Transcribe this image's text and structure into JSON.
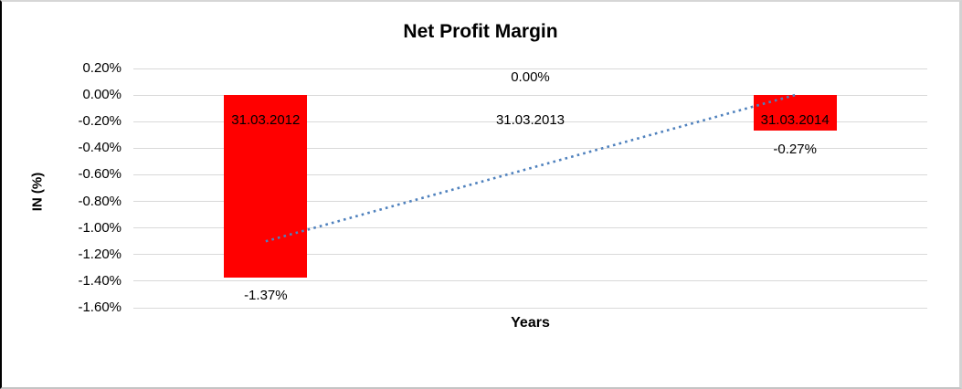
{
  "window": {
    "background": "#ffffff",
    "border_left_color": "#000000",
    "border_light_color": "#d2d2d2"
  },
  "chart_data": {
    "type": "bar",
    "title": "Net Profit Margin",
    "xlabel": "Years",
    "ylabel": "IN (%)",
    "categories": [
      "31.03.2012",
      "31.03.2013",
      "31.03.2014"
    ],
    "values": [
      -1.37,
      0.0,
      -0.27
    ],
    "value_labels": [
      "-1.37%",
      "0.00%",
      "-0.27%"
    ],
    "unit": "percent",
    "ylim": [
      -1.6,
      0.2
    ],
    "yticks": [
      {
        "value": 0.2,
        "label": "0.20%"
      },
      {
        "value": 0.0,
        "label": "0.00%"
      },
      {
        "value": -0.2,
        "label": "-0.20%"
      },
      {
        "value": -0.4,
        "label": "-0.40%"
      },
      {
        "value": -0.6,
        "label": "-0.60%"
      },
      {
        "value": -0.8,
        "label": "-0.80%"
      },
      {
        "value": -1.0,
        "label": "-1.00%"
      },
      {
        "value": -1.2,
        "label": "-1.20%"
      },
      {
        "value": -1.4,
        "label": "-1.40%"
      },
      {
        "value": -1.6,
        "label": "-1.60%"
      }
    ],
    "grid": true,
    "legend_position": "none",
    "bar_color": "#ff0000",
    "gridline_color": "#d9d9d9",
    "trendline": {
      "type": "linear",
      "style": "dotted",
      "color": "#4f81bd",
      "start": {
        "category_index": 0,
        "value": -1.1
      },
      "end": {
        "category_index": 2,
        "value": 0.0
      }
    }
  }
}
